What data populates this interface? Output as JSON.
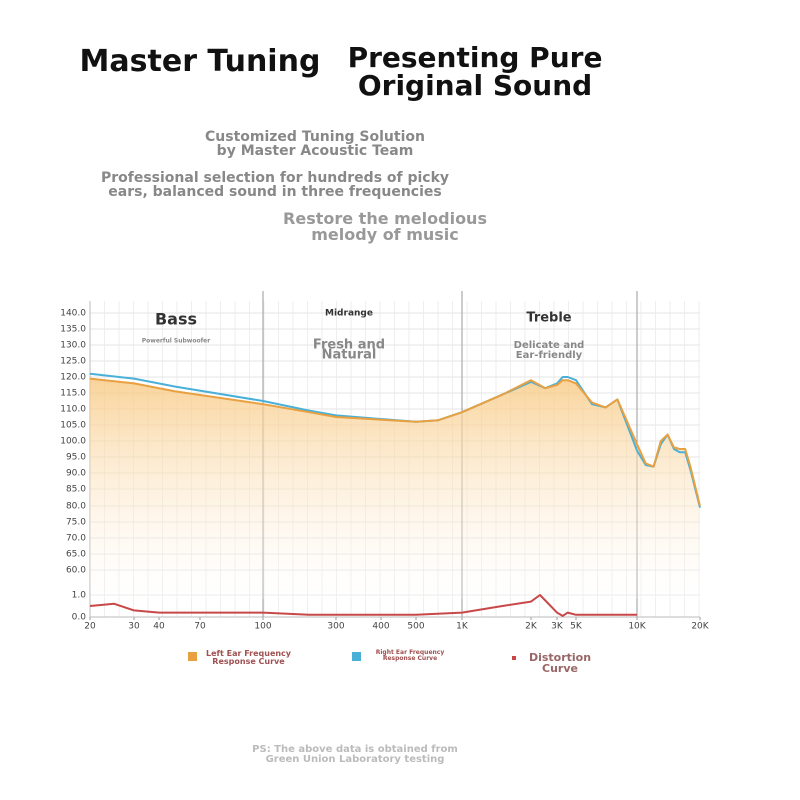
{
  "header": {
    "title": "Master Tuning",
    "headline": [
      "Presenting Pure",
      "Original Sound"
    ],
    "points": [
      [
        "Customized Tuning Solution",
        "by Master Acoustic Team"
      ],
      [
        "Professional selection for hundreds of picky",
        "ears, balanced sound in three frequencies"
      ],
      [
        "Restore the melodious",
        "melody of music"
      ]
    ]
  },
  "chart_data": {
    "type": "line",
    "regions": [
      {
        "name": "Bass",
        "subtitle": [
          "Powerful Subwoofer"
        ]
      },
      {
        "name": "Midrange",
        "subtitle": [
          "Fresh and",
          "Natural"
        ]
      },
      {
        "name": "Treble",
        "subtitle": [
          "Delicate and",
          "Ear-friendly"
        ]
      }
    ],
    "x": [
      20,
      30,
      50,
      100,
      200,
      300,
      500,
      700,
      1000,
      1500,
      2000,
      2500,
      3000,
      3500,
      4000,
      5000,
      6000,
      7000,
      8000,
      10000,
      11000,
      12000,
      13000,
      14000,
      15000,
      16000,
      17000,
      18000,
      20000
    ],
    "series": [
      {
        "name": "Left Ear Frequency Response Curve",
        "color": "#e8a040",
        "values": [
          119.5,
          118,
          115.5,
          111.5,
          109,
          107.5,
          106,
          106.5,
          109,
          114.5,
          119,
          116.5,
          117.5,
          119,
          119,
          118,
          112,
          110.5,
          113,
          99,
          93,
          92,
          100,
          102,
          98,
          97.5,
          97.5,
          92,
          80
        ]
      },
      {
        "name": "Right Ear Frequency Response Curve",
        "color": "#4ab0d8",
        "values": [
          121,
          119.5,
          117,
          112.5,
          109.5,
          108,
          106,
          106.5,
          109,
          114.5,
          118.5,
          116.5,
          118,
          120,
          120,
          119,
          111.5,
          110.5,
          113,
          97,
          92.5,
          92,
          99,
          102,
          97.5,
          96.5,
          96.5,
          91,
          79.5
        ]
      },
      {
        "name": "Distortion Curve",
        "color": "#c84848",
        "x": [
          20,
          25,
          30,
          40,
          100,
          200,
          500,
          1000,
          1500,
          2000,
          2300,
          3000,
          3500,
          4000,
          5000,
          10000
        ],
        "values": [
          0.5,
          0.6,
          0.3,
          0.2,
          0.2,
          0.1,
          0.1,
          0.2,
          0.5,
          0.7,
          1.0,
          0.2,
          0.05,
          0.2,
          0.1,
          0.1
        ]
      }
    ],
    "xscale": "log",
    "xlim": [
      20,
      20000
    ],
    "xticks": [
      20,
      30,
      40,
      70,
      100,
      300,
      400,
      500,
      {
        "value": 1000,
        "label": "1K"
      },
      {
        "value": 2000,
        "label": "2K"
      },
      {
        "value": 3000,
        "label": "3K"
      },
      {
        "value": 5000,
        "label": "5K"
      },
      {
        "value": 10000,
        "label": "10K"
      },
      {
        "value": 20000,
        "label": "20K"
      }
    ],
    "ylim": [
      0,
      140
    ],
    "yticks": [
      {
        "value": 0,
        "label": "0.0"
      },
      {
        "value": 1,
        "label": "1.0"
      },
      {
        "value": 60,
        "label": "60.0"
      },
      {
        "value": 65,
        "label": "65.0"
      },
      {
        "value": 70,
        "label": "70.0"
      },
      {
        "value": 75,
        "label": "75.0"
      },
      {
        "value": 80,
        "label": "80.0"
      },
      {
        "value": 85,
        "label": "85.0"
      },
      {
        "value": 90,
        "label": "90.0"
      },
      {
        "value": 95,
        "label": "95.0"
      },
      {
        "value": 100,
        "label": "100.0"
      },
      {
        "value": 105,
        "label": "105.0"
      },
      {
        "value": 110,
        "label": "110.0"
      },
      {
        "value": 115,
        "label": "115.0"
      },
      {
        "value": 120,
        "label": "120.0"
      },
      {
        "value": 125,
        "label": "125.0"
      },
      {
        "value": 130,
        "label": "130.0"
      },
      {
        "value": 135,
        "label": "135.0"
      },
      {
        "value": 140,
        "label": "140.0"
      }
    ],
    "grid": true,
    "footnote": [
      "PS: The above data is obtained from",
      "Green Union Laboratory testing"
    ]
  }
}
